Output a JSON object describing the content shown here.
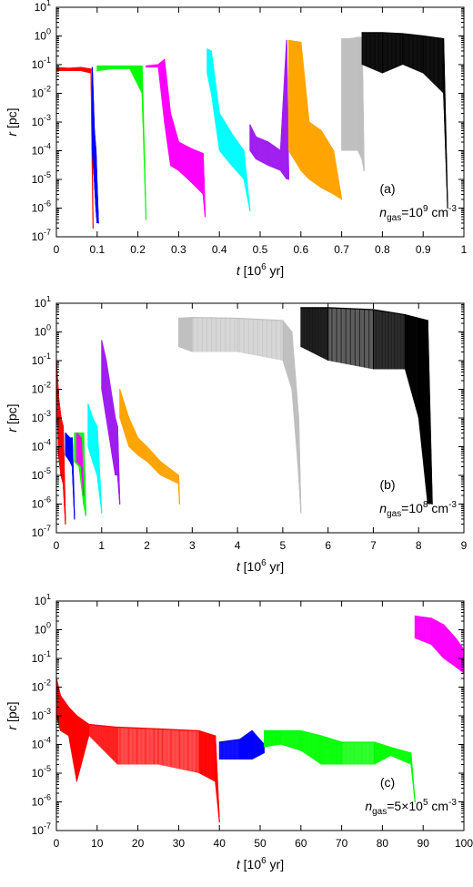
{
  "chart_data": [
    {
      "type": "line",
      "panel_label": "(a)",
      "annotation": {
        "prefix": "n",
        "sub": "gas",
        "eq": "=10",
        "sup": "9",
        "unit": " cm",
        "unit_sup": "-3"
      },
      "xlabel": {
        "var": "t",
        "unit": " [10",
        "sup": "6",
        "unit_end": " yr]"
      },
      "ylabel": {
        "var": "r",
        "unit": " [pc]"
      },
      "xlim": [
        0,
        1
      ],
      "xticks": [
        {
          "value": 0,
          "label": "0"
        },
        {
          "value": 0.1,
          "label": "0.1"
        },
        {
          "value": 0.2,
          "label": "0.2"
        },
        {
          "value": 0.3,
          "label": "0.3"
        },
        {
          "value": 0.4,
          "label": "0.4"
        },
        {
          "value": 0.5,
          "label": "0.5"
        },
        {
          "value": 0.6,
          "label": "0.6"
        },
        {
          "value": 0.7,
          "label": "0.7"
        },
        {
          "value": 0.8,
          "label": "0.8"
        },
        {
          "value": 0.9,
          "label": "0.9"
        },
        {
          "value": 1,
          "label": "1"
        }
      ],
      "ylim_log10": [
        -7,
        1
      ],
      "yscale": "log",
      "series": [
        {
          "color": "#ff0000",
          "t": [
            0.0,
            0.03,
            0.06,
            0.085,
            0.09
          ],
          "r": [
            0.08,
            0.075,
            0.08,
            0.07,
            2e-07
          ],
          "r_min": [
            0.06,
            0.06,
            0.06,
            0.05,
            2e-07
          ]
        },
        {
          "color": "#0000ff",
          "t": [
            0.088,
            0.093,
            0.097,
            0.1,
            0.103
          ],
          "r": [
            0.08,
            0.0005,
            0.0001,
            5e-06,
            3e-07
          ],
          "r_min": [
            0.0001,
            1e-05,
            1e-06,
            3e-07,
            3e-07
          ]
        },
        {
          "color": "#00ff00",
          "t": [
            0.1,
            0.14,
            0.18,
            0.21,
            0.22
          ],
          "r": [
            0.09,
            0.09,
            0.09,
            0.09,
            4e-07
          ],
          "r_min": [
            0.06,
            0.07,
            0.07,
            0.01,
            4e-07
          ]
        },
        {
          "color": "#ff00ff",
          "t": [
            0.22,
            0.25,
            0.265,
            0.28,
            0.3,
            0.33,
            0.36,
            0.365
          ],
          "r": [
            0.09,
            0.1,
            0.15,
            0.002,
            0.0002,
            0.00012,
            8e-05,
            5e-07
          ],
          "r_min": [
            0.08,
            0.08,
            0.001,
            3e-05,
            2e-05,
            8e-06,
            3e-06,
            5e-07
          ]
        },
        {
          "color": "#00ffff",
          "t": [
            0.37,
            0.38,
            0.4,
            0.43,
            0.46,
            0.475
          ],
          "r": [
            0.35,
            0.3,
            0.002,
            0.0004,
            0.0001,
            8e-07
          ],
          "r_min": [
            0.05,
            0.01,
            0.0001,
            3e-05,
            1e-05,
            8e-07
          ]
        },
        {
          "color": "#a020f0",
          "t": [
            0.475,
            0.49,
            0.52,
            0.55,
            0.565,
            0.57
          ],
          "r": [
            0.0008,
            0.0003,
            0.0002,
            0.0001,
            0.7,
            1e-05
          ],
          "r_min": [
            0.0001,
            5e-05,
            3e-05,
            2e-05,
            1e-05,
            1e-05
          ]
        },
        {
          "color": "#ffa500",
          "t": [
            0.57,
            0.6,
            0.62,
            0.65,
            0.68,
            0.7
          ],
          "r": [
            0.7,
            0.6,
            0.001,
            0.0005,
            0.0001,
            2e-06
          ],
          "r_min": [
            0.0001,
            2e-05,
            1e-05,
            5e-06,
            3e-06,
            2e-06
          ]
        },
        {
          "color": "#c0c0c0",
          "t": [
            0.7,
            0.72,
            0.74,
            0.75,
            0.755
          ],
          "r": [
            0.8,
            0.8,
            0.9,
            0.9,
            2e-05
          ],
          "r_min": [
            0.0001,
            0.0001,
            0.0001,
            5e-05,
            2e-05
          ]
        },
        {
          "color": "#000000",
          "t": [
            0.75,
            0.8,
            0.85,
            0.9,
            0.95,
            0.96
          ],
          "r": [
            1.3,
            1.3,
            1.2,
            1.0,
            0.8,
            1e-06
          ],
          "r_min": [
            0.1,
            0.05,
            0.1,
            0.05,
            0.01,
            1e-06
          ]
        }
      ]
    },
    {
      "type": "line",
      "panel_label": "(b)",
      "annotation": {
        "prefix": "n",
        "sub": "gas",
        "eq": "=10",
        "sup": "8",
        "unit": " cm",
        "unit_sup": "-3"
      },
      "xlabel": {
        "var": "t",
        "unit": " [10",
        "sup": "6",
        "unit_end": " yr]"
      },
      "ylabel": {
        "var": "r",
        "unit": " [pc]"
      },
      "xlim": [
        0,
        9
      ],
      "xticks": [
        {
          "value": 0,
          "label": "0"
        },
        {
          "value": 1,
          "label": "1"
        },
        {
          "value": 2,
          "label": "2"
        },
        {
          "value": 3,
          "label": "3"
        },
        {
          "value": 4,
          "label": "4"
        },
        {
          "value": 5,
          "label": "5"
        },
        {
          "value": 6,
          "label": "6"
        },
        {
          "value": 7,
          "label": "7"
        },
        {
          "value": 8,
          "label": "8"
        },
        {
          "value": 9,
          "label": "9"
        }
      ],
      "ylim_log10": [
        -7,
        1
      ],
      "yscale": "log",
      "series": [
        {
          "color": "#ff0000",
          "t": [
            0.0,
            0.05,
            0.1,
            0.15,
            0.2
          ],
          "r": [
            0.1,
            0.005,
            0.001,
            0.0005,
            2e-07
          ],
          "r_min": [
            0.01,
            5e-05,
            1e-05,
            5e-06,
            2e-07
          ]
        },
        {
          "color": "#0000ff",
          "t": [
            0.2,
            0.3,
            0.35,
            0.4
          ],
          "r": [
            0.0003,
            0.0002,
            0.0002,
            3e-07
          ],
          "r_min": [
            5e-05,
            3e-05,
            2e-05,
            3e-07
          ]
        },
        {
          "color": "#00ff00",
          "t": [
            0.4,
            0.5,
            0.6,
            0.65
          ],
          "r": [
            0.0003,
            0.0003,
            0.0003,
            4e-07
          ],
          "r_min": [
            3e-05,
            2e-05,
            1e-06,
            4e-07
          ]
        },
        {
          "color": "#ff00ff",
          "t": [
            0.45,
            0.55,
            0.6
          ],
          "r": [
            0.0003,
            0.0002,
            2e-06
          ],
          "r_min": [
            3e-05,
            2e-05,
            2e-06
          ]
        },
        {
          "color": "#00ffff",
          "t": [
            0.7,
            0.8,
            0.9,
            1.0
          ],
          "r": [
            0.003,
            0.001,
            0.0005,
            5e-07
          ],
          "r_min": [
            0.0001,
            3e-05,
            1e-05,
            5e-07
          ]
        },
        {
          "color": "#a020f0",
          "t": [
            1.0,
            1.1,
            1.2,
            1.3,
            1.35,
            1.4
          ],
          "r": [
            0.5,
            0.1,
            0.01,
            0.001,
            0.0005,
            1e-06
          ],
          "r_min": [
            0.01,
            0.001,
            0.0001,
            1e-05,
            1e-05,
            1e-06
          ]
        },
        {
          "color": "#ffa500",
          "t": [
            1.4,
            1.6,
            1.8,
            2.0,
            2.3,
            2.7,
            2.72
          ],
          "r": [
            0.01,
            0.001,
            0.0002,
            0.0001,
            3e-05,
            1e-05,
            1e-06
          ],
          "r_min": [
            0.001,
            0.0001,
            5e-05,
            3e-05,
            1e-05,
            5e-06,
            1e-06
          ]
        },
        {
          "color": "#c0c0c0",
          "t": [
            2.7,
            3.0,
            4.0,
            5.0,
            5.2,
            5.35,
            5.4
          ],
          "r": [
            3.0,
            3.2,
            3.0,
            2.5,
            1.0,
            0.001,
            5e-07
          ],
          "r_min": [
            0.3,
            0.2,
            0.2,
            0.1,
            0.01,
            1e-05,
            5e-07
          ]
        },
        {
          "color": "#000000",
          "t": [
            5.4,
            6.0,
            7.0,
            7.7,
            8.0,
            8.2,
            8.3
          ],
          "r": [
            7.0,
            7.0,
            6.0,
            4.0,
            3.0,
            2.5,
            1e-06
          ],
          "r_min": [
            0.3,
            0.1,
            0.05,
            0.05,
            0.001,
            1e-06,
            1e-06
          ]
        }
      ]
    },
    {
      "type": "line",
      "panel_label": "(c)",
      "annotation": {
        "prefix": "n",
        "sub": "gas",
        "eq": "=5×10",
        "sup": "5",
        "unit": " cm",
        "unit_sup": "-3"
      },
      "xlabel": {
        "var": "t",
        "unit": " [10",
        "sup": "6",
        "unit_end": " yr]"
      },
      "ylabel": {
        "var": "r",
        "unit": " [pc]"
      },
      "xlim": [
        0,
        100
      ],
      "xticks": [
        {
          "value": 0,
          "label": "0"
        },
        {
          "value": 10,
          "label": "10"
        },
        {
          "value": 20,
          "label": "20"
        },
        {
          "value": 30,
          "label": "30"
        },
        {
          "value": 40,
          "label": "40"
        },
        {
          "value": 50,
          "label": "50"
        },
        {
          "value": 60,
          "label": "60"
        },
        {
          "value": 70,
          "label": "70"
        },
        {
          "value": 80,
          "label": "80"
        },
        {
          "value": 90,
          "label": "90"
        },
        {
          "value": 100,
          "label": "100"
        }
      ],
      "ylim_log10": [
        -7,
        1
      ],
      "yscale": "log",
      "series": [
        {
          "color": "#ff0000",
          "t": [
            0.0,
            1.0,
            3.0,
            5.0,
            8.0,
            15.0,
            25.0,
            35.0,
            39.0,
            40.0
          ],
          "r": [
            0.02,
            0.005,
            0.002,
            0.001,
            0.0005,
            0.0004,
            0.00035,
            0.0003,
            0.0002,
            2e-07
          ],
          "r_min": [
            0.001,
            0.0003,
            0.0002,
            5e-06,
            0.0002,
            2e-05,
            2e-05,
            1e-05,
            5e-06,
            2e-07
          ]
        },
        {
          "color": "#0000ff",
          "t": [
            40.0,
            45.0,
            48.0,
            51.0
          ],
          "r": [
            0.00012,
            0.00015,
            0.0003,
            0.0001
          ],
          "r_min": [
            3e-05,
            3e-05,
            3e-05,
            5e-05
          ]
        },
        {
          "color": "#00ff00",
          "t": [
            51.0,
            55.0,
            60.0,
            65.0,
            70.0,
            78.0,
            82.0,
            87.0,
            88.0
          ],
          "r": [
            0.0003,
            0.0003,
            0.0003,
            0.0002,
            0.00012,
            0.00012,
            8e-05,
            5e-05,
            1e-06
          ],
          "r_min": [
            8e-05,
            0.0001,
            6e-05,
            2e-05,
            2e-05,
            2e-05,
            4e-05,
            2e-05,
            1e-06
          ]
        },
        {
          "color": "#ff00ff",
          "t": [
            88.0,
            92.0,
            95.0,
            98.0,
            100.0
          ],
          "r": [
            3.0,
            2.5,
            1.5,
            0.5,
            0.2
          ],
          "r_min": [
            0.5,
            0.3,
            0.1,
            0.05,
            0.03
          ]
        }
      ]
    }
  ]
}
